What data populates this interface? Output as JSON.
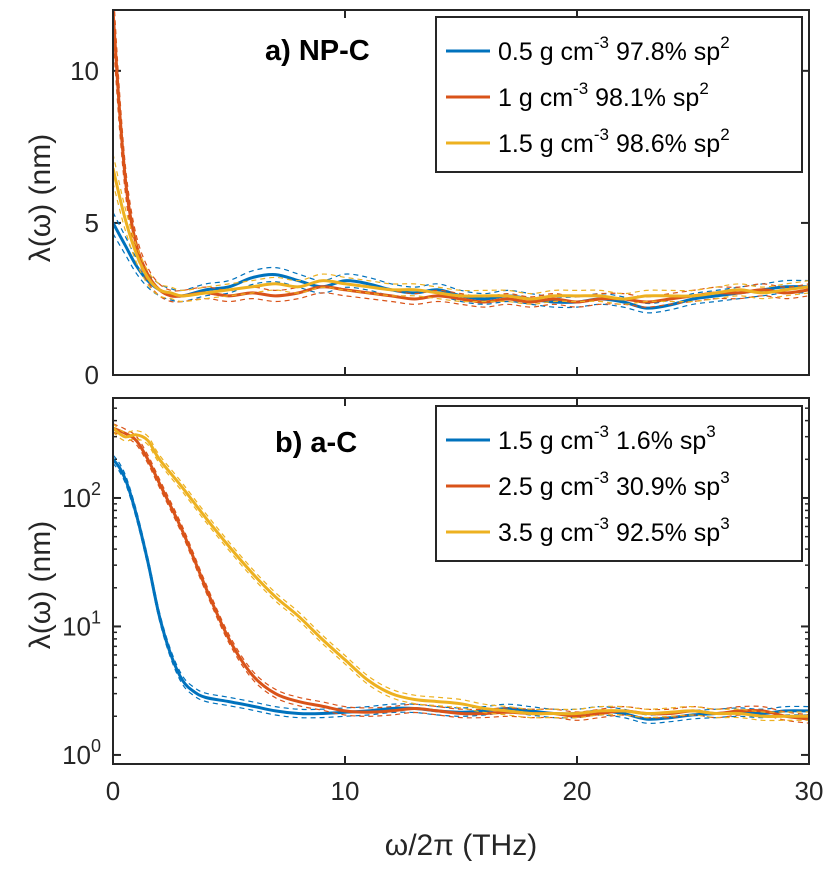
{
  "chart_data": [
    {
      "type": "line",
      "panel": "top",
      "title": "a) NP-C",
      "xlabel": "",
      "ylabel": "λ(ω) (nm)",
      "yscale": "linear",
      "xlim": [
        0,
        30
      ],
      "ylim": [
        0,
        12
      ],
      "xticks": [
        0,
        10,
        20,
        30
      ],
      "yticks": [
        0,
        5,
        10
      ],
      "ytick_labels": [
        "0",
        "5",
        "10"
      ],
      "legend_position": "top-right",
      "series": [
        {
          "name": "0.5 g cm-3 97.8% sp2",
          "legend_main": "0.5 g cm",
          "legend_exp": "-3",
          "legend_tail": " 97.8% sp",
          "legend_tail_exp": "2",
          "color": "#0072BD",
          "x": [
            0,
            0.5,
            1,
            1.5,
            2,
            2.5,
            3,
            4,
            5,
            6,
            7,
            8,
            9,
            10,
            11,
            12,
            13,
            14,
            15,
            16,
            17,
            18,
            19,
            20,
            21,
            22,
            23,
            24,
            25,
            26,
            27,
            28,
            29,
            30
          ],
          "y": [
            5.0,
            4.3,
            3.6,
            3.1,
            2.8,
            2.65,
            2.6,
            2.8,
            2.9,
            3.2,
            3.3,
            3.1,
            2.9,
            3.1,
            3.0,
            2.8,
            2.7,
            2.8,
            2.6,
            2.5,
            2.6,
            2.5,
            2.4,
            2.4,
            2.5,
            2.4,
            2.2,
            2.3,
            2.5,
            2.6,
            2.7,
            2.8,
            2.9,
            2.9
          ]
        },
        {
          "name": "1 g cm-3 98.1% sp2",
          "legend_main": "1 g cm",
          "legend_exp": "-3",
          "legend_tail": " 98.1% sp",
          "legend_tail_exp": "2",
          "color": "#D95319",
          "x": [
            0,
            0.3,
            0.6,
            1,
            1.5,
            2,
            2.5,
            3,
            4,
            5,
            6,
            7,
            8,
            9,
            10,
            11,
            12,
            13,
            14,
            15,
            16,
            17,
            18,
            19,
            20,
            21,
            22,
            23,
            24,
            25,
            26,
            27,
            28,
            29,
            30
          ],
          "y": [
            12.0,
            8.5,
            6.0,
            4.3,
            3.3,
            2.8,
            2.6,
            2.6,
            2.7,
            2.6,
            2.7,
            2.6,
            2.7,
            2.9,
            2.8,
            2.7,
            2.6,
            2.5,
            2.6,
            2.5,
            2.4,
            2.5,
            2.4,
            2.5,
            2.4,
            2.5,
            2.5,
            2.4,
            2.5,
            2.6,
            2.7,
            2.7,
            2.8,
            2.7,
            2.8
          ]
        },
        {
          "name": "1.5 g cm-3 98.6% sp2",
          "legend_main": "1.5 g cm",
          "legend_exp": "-3",
          "legend_tail": " 98.6% sp",
          "legend_tail_exp": "2",
          "color": "#EDB120",
          "x": [
            0,
            0.5,
            1,
            1.5,
            2,
            2.5,
            3,
            4,
            5,
            6,
            7,
            8,
            9,
            10,
            11,
            12,
            13,
            14,
            15,
            16,
            17,
            18,
            19,
            20,
            21,
            22,
            23,
            24,
            25,
            26,
            27,
            28,
            29,
            30
          ],
          "y": [
            6.8,
            5.2,
            4.0,
            3.2,
            2.8,
            2.7,
            2.6,
            2.7,
            2.8,
            2.9,
            3.0,
            2.9,
            3.1,
            3.0,
            2.9,
            2.8,
            2.8,
            2.7,
            2.6,
            2.6,
            2.6,
            2.5,
            2.6,
            2.6,
            2.6,
            2.5,
            2.6,
            2.6,
            2.6,
            2.7,
            2.8,
            2.7,
            2.8,
            2.9
          ]
        }
      ]
    },
    {
      "type": "line",
      "panel": "bottom",
      "title": "b) a-C",
      "xlabel": "ω/2π (THz)",
      "ylabel": "λ(ω) (nm)",
      "yscale": "log",
      "xlim": [
        0,
        30
      ],
      "ylim": [
        0.85,
        600
      ],
      "xticks": [
        0,
        10,
        20,
        30
      ],
      "yticks": [
        1,
        10,
        100
      ],
      "ytick_base": "10",
      "ytick_exps": [
        "0",
        "1",
        "2"
      ],
      "legend_position": "top-right",
      "series": [
        {
          "name": "1.5 g cm-3 1.6% sp3",
          "legend_main": "1.5 g cm",
          "legend_exp": "-3",
          "legend_tail": " 1.6% sp",
          "legend_tail_exp": "3",
          "color": "#0072BD",
          "x": [
            0,
            0.3,
            0.6,
            1,
            1.5,
            2,
            2.5,
            3,
            3.5,
            4,
            5,
            6,
            7,
            8,
            9,
            10,
            11,
            12,
            13,
            14,
            15,
            16,
            17,
            18,
            19,
            20,
            21,
            22,
            23,
            24,
            25,
            26,
            27,
            28,
            29,
            30
          ],
          "y": [
            200,
            170,
            130,
            75,
            32,
            12,
            6,
            3.8,
            3.1,
            2.8,
            2.6,
            2.4,
            2.2,
            2.1,
            2.1,
            2.15,
            2.2,
            2.3,
            2.3,
            2.2,
            2.15,
            2.2,
            2.3,
            2.2,
            2.1,
            2.1,
            2.2,
            2.1,
            1.9,
            1.95,
            2.05,
            2.1,
            2.15,
            2.1,
            2.2,
            2.2
          ]
        },
        {
          "name": "2.5 g cm-3 30.9% sp3",
          "legend_main": "2.5 g cm",
          "legend_exp": "-3",
          "legend_tail": " 30.9% sp",
          "legend_tail_exp": "3",
          "color": "#D95319",
          "x": [
            0,
            0.5,
            1,
            1.5,
            2,
            3,
            4,
            5,
            6,
            7,
            8,
            9,
            10,
            11,
            12,
            13,
            14,
            15,
            16,
            17,
            18,
            19,
            20,
            21,
            22,
            23,
            24,
            25,
            26,
            27,
            28,
            29,
            30
          ],
          "y": [
            350,
            320,
            280,
            200,
            130,
            55,
            20,
            8,
            4.2,
            3.0,
            2.6,
            2.4,
            2.2,
            2.15,
            2.2,
            2.3,
            2.2,
            2.1,
            2.1,
            2.15,
            2.1,
            2.1,
            2.0,
            2.1,
            2.2,
            2.1,
            2.1,
            2.2,
            2.1,
            2.2,
            2.2,
            2.0,
            1.9
          ]
        },
        {
          "name": "3.5 g cm-3 92.5% sp3",
          "legend_main": "3.5 g cm",
          "legend_exp": "-3",
          "legend_tail": " 92.5% sp",
          "legend_tail_exp": "3",
          "color": "#EDB120",
          "x": [
            0,
            0.5,
            1,
            1.5,
            2,
            3,
            4,
            5,
            6,
            7,
            8,
            9,
            10,
            11,
            12,
            13,
            14,
            15,
            16,
            17,
            18,
            19,
            20,
            21,
            22,
            23,
            24,
            25,
            26,
            27,
            28,
            29,
            30
          ],
          "y": [
            350,
            300,
            310,
            280,
            200,
            120,
            70,
            42,
            26,
            17,
            12,
            8,
            5.5,
            3.8,
            3.0,
            2.7,
            2.6,
            2.5,
            2.3,
            2.2,
            2.1,
            2.1,
            2.1,
            2.2,
            2.2,
            2.1,
            2.15,
            2.2,
            2.1,
            2.1,
            2.0,
            2.0,
            2.0
          ]
        }
      ]
    }
  ]
}
